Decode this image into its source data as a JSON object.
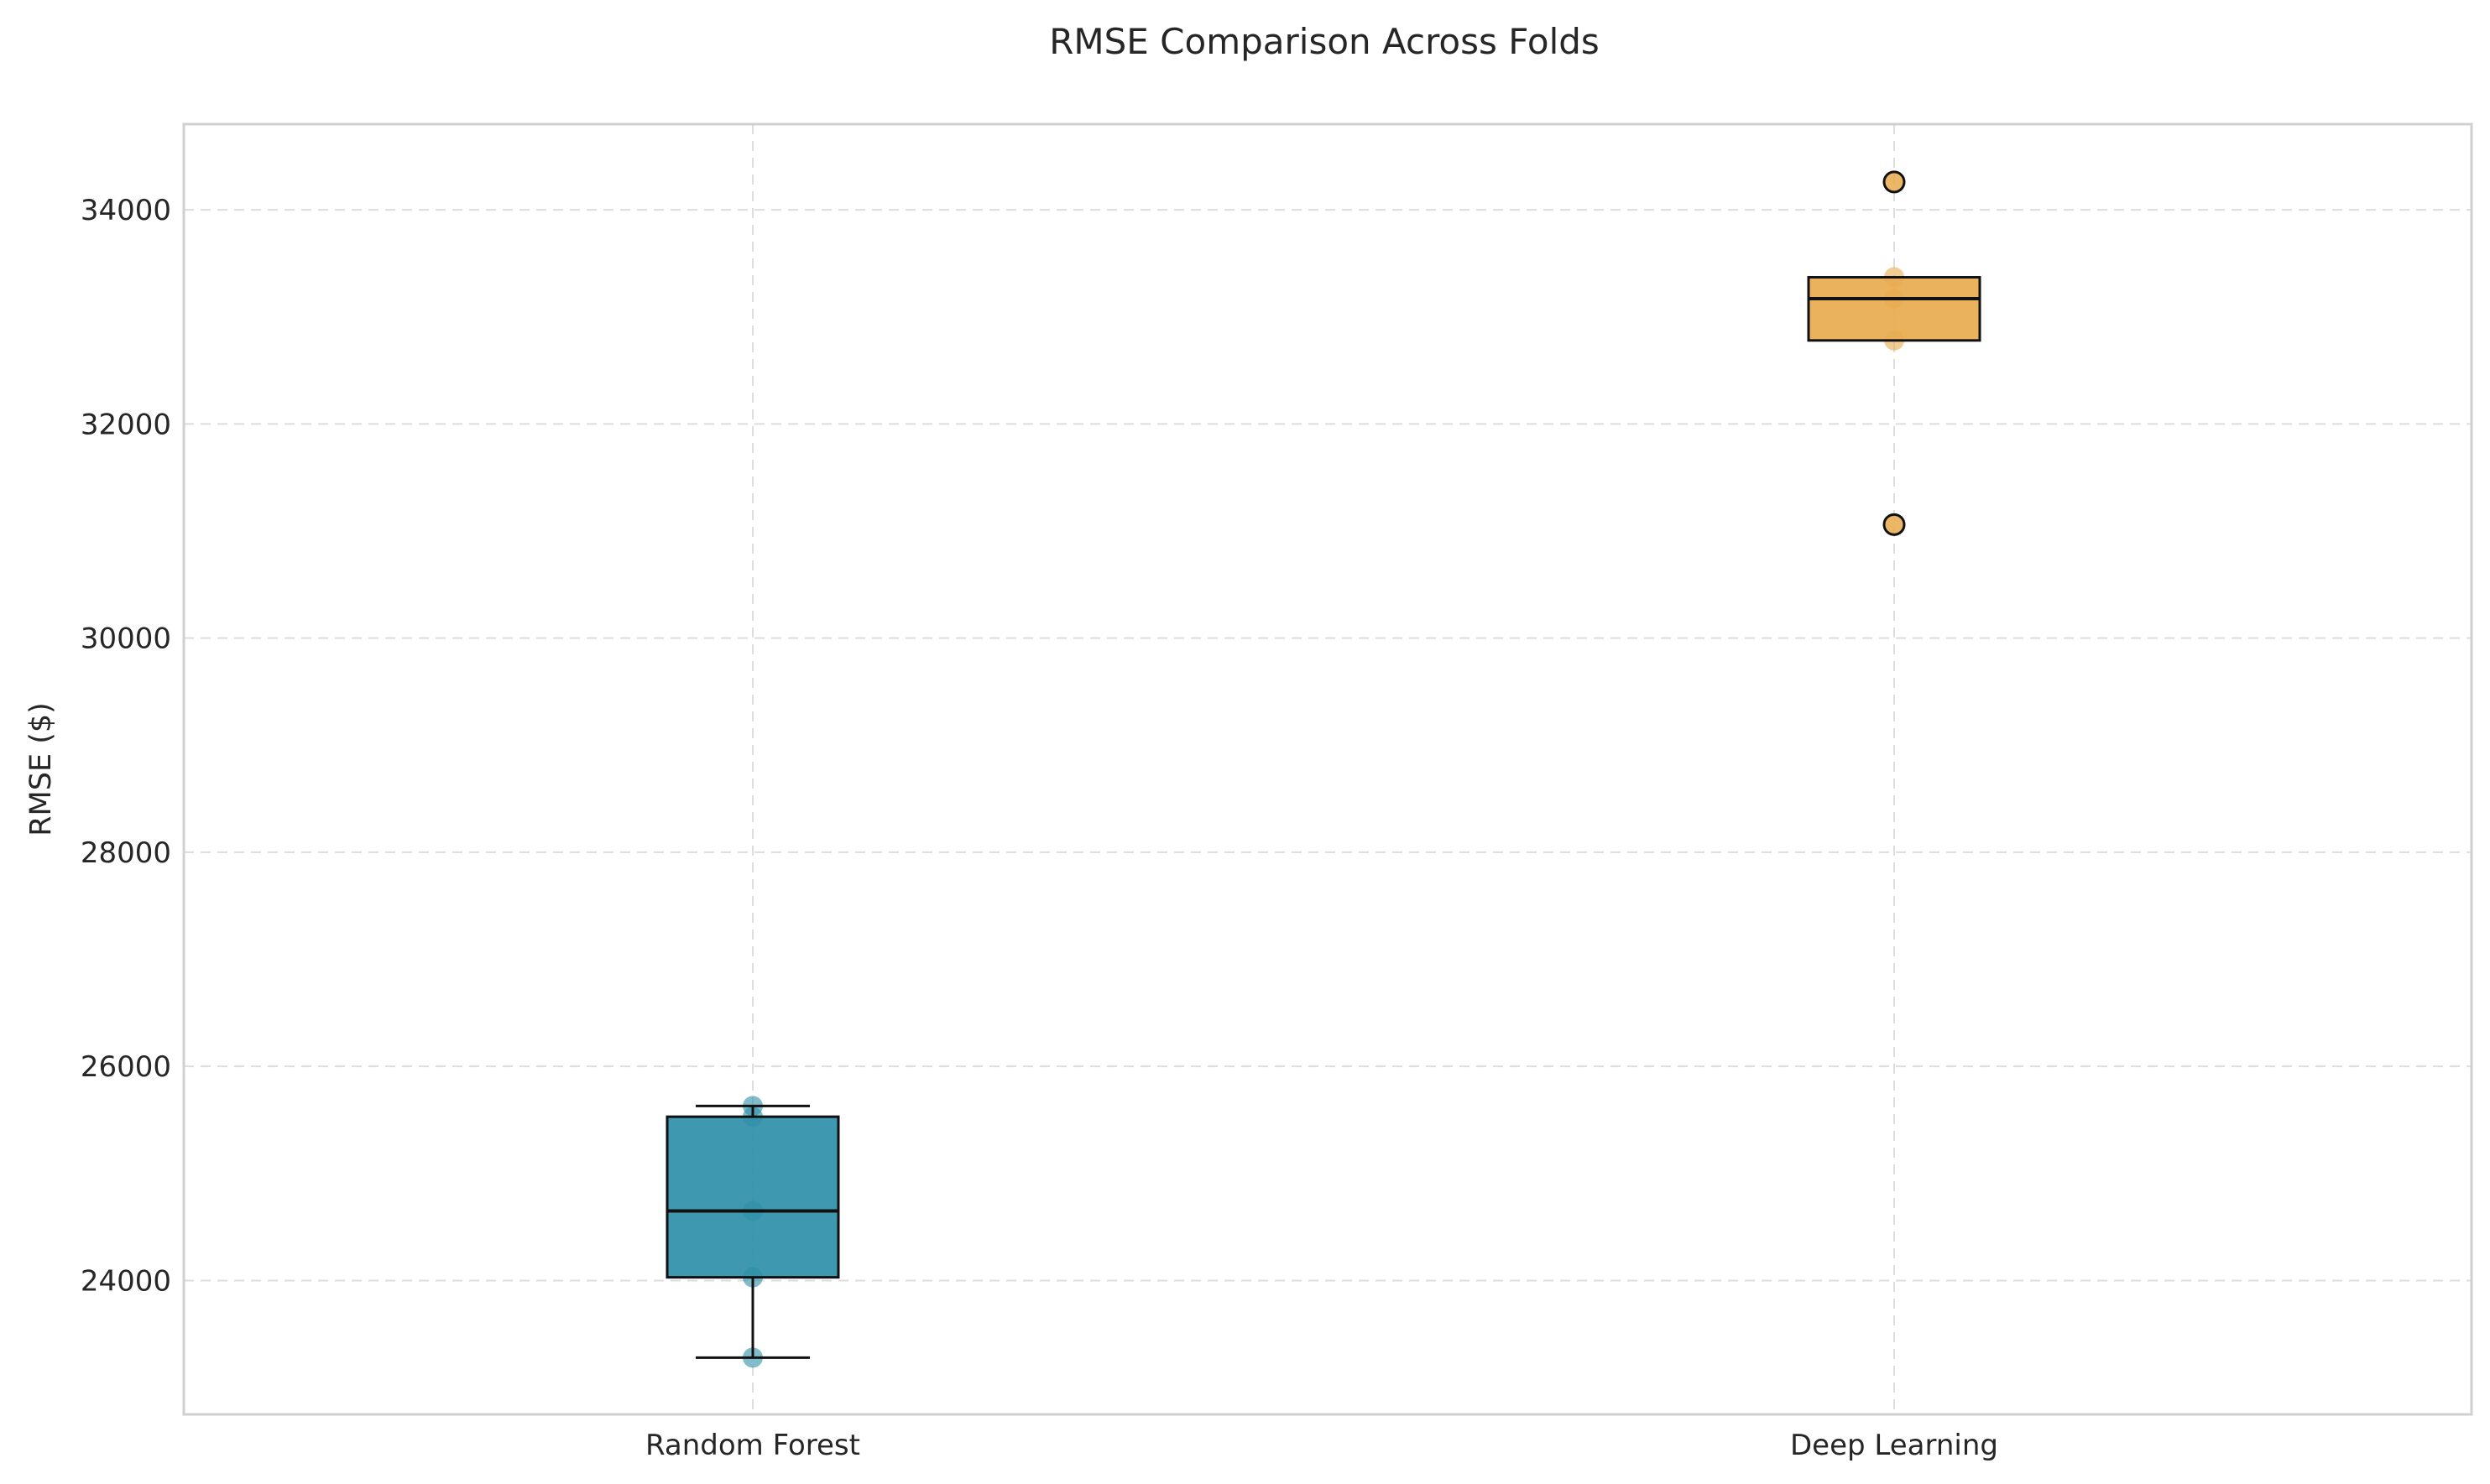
{
  "chart_data": {
    "type": "box",
    "title": "RMSE Comparison Across Folds",
    "xlabel": "",
    "ylabel": "RMSE ($)",
    "ylim": [
      22750,
      34800
    ],
    "yticks": [
      24000,
      26000,
      28000,
      30000,
      32000,
      34000
    ],
    "grid": true,
    "categories": [
      "Random Forest",
      "Deep Learning"
    ],
    "series": [
      {
        "category": "Random Forest",
        "color": "#2E8FA8",
        "box": {
          "whisker_low": 23280,
          "q1": 24030,
          "median": 24650,
          "q3": 25530,
          "whisker_high": 25630
        },
        "outliers": [],
        "points": [
          23280,
          24030,
          24650,
          25530,
          25630
        ]
      },
      {
        "category": "Deep Learning",
        "color": "#E8AB4F",
        "box": {
          "whisker_low": 32780,
          "q1": 32780,
          "median": 33170,
          "q3": 33370,
          "whisker_high": 33370
        },
        "outliers": [
          31060,
          34260
        ],
        "points": [
          31060,
          32780,
          33170,
          33370,
          34260
        ]
      }
    ]
  }
}
